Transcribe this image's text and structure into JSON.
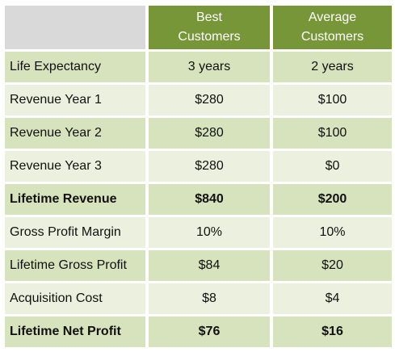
{
  "header": {
    "col1": [
      "Best",
      "Customers"
    ],
    "col2": [
      "Average",
      "Customers"
    ]
  },
  "rows": [
    {
      "label": "Life Expectancy",
      "best": "3 years",
      "average": "2 years"
    },
    {
      "label": "Revenue Year 1",
      "best": "$280",
      "average": "$100"
    },
    {
      "label": "Revenue Year 2",
      "best": "$280",
      "average": "$100"
    },
    {
      "label": "Revenue Year 3",
      "best": "$280",
      "average": "$0"
    },
    {
      "label": "Lifetime Revenue",
      "best": "$840",
      "average": "$200"
    },
    {
      "label": "Gross Profit Margin",
      "best": "10%",
      "average": "10%"
    },
    {
      "label": "Lifetime Gross Profit",
      "best": "$84",
      "average": "$20"
    },
    {
      "label": "Acquisition Cost",
      "best": "$8",
      "average": "$4"
    },
    {
      "label": "Lifetime Net Profit",
      "best": "$76",
      "average": "$16"
    }
  ],
  "colors": {
    "header_bg": "#779638",
    "row_dark": "#d7e3bd",
    "row_light": "#ebf1de",
    "corner": "#d9d9d9"
  }
}
